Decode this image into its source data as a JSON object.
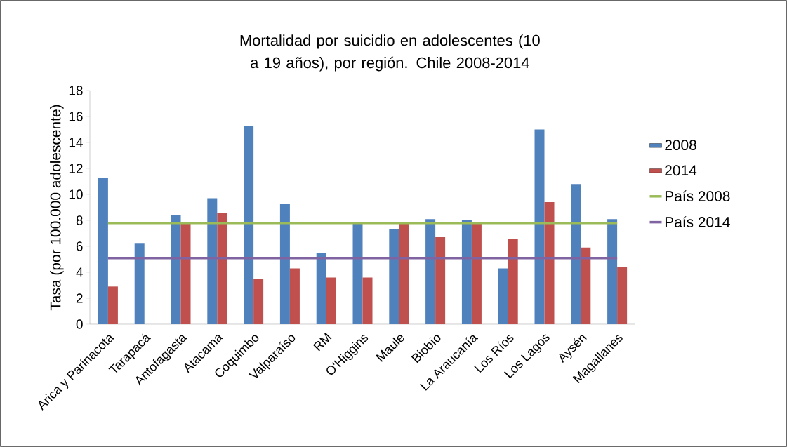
{
  "chart_data": {
    "type": "bar",
    "title": "Mortalidad por suicidio en adolescentes (10 a 19 años), por región. Chile 2008-2014",
    "ylabel": "Tasa (por 100.000 adolescente)",
    "categories": [
      "Arica y Parinacota",
      "Tarapacá",
      "Antofagasta",
      "Atacama",
      "Coquimbo",
      "Valparaíso",
      "RM",
      "O'Higgins",
      "Maule",
      "Biobío",
      "La Araucanía",
      "Los Ríos",
      "Los Lagos",
      "Aysén",
      "Magallanes"
    ],
    "series": [
      {
        "name": "2008",
        "color": "#4f81bd",
        "values": [
          11.3,
          6.2,
          8.4,
          9.7,
          15.3,
          9.3,
          5.5,
          7.8,
          7.3,
          8.1,
          8.0,
          4.3,
          15.0,
          10.8,
          8.1
        ]
      },
      {
        "name": "2014",
        "color": "#c0504d",
        "values": [
          2.9,
          null,
          7.8,
          8.6,
          3.5,
          4.3,
          3.6,
          3.6,
          7.8,
          6.7,
          7.8,
          6.6,
          9.4,
          5.9,
          4.4
        ]
      },
      {
        "name": "País 2008",
        "type": "line",
        "color": "#9bbb59",
        "values": [
          7.8,
          7.8,
          7.8,
          7.8,
          7.8,
          7.8,
          7.8,
          7.8,
          7.8,
          7.8,
          7.8,
          7.8,
          7.8,
          7.8,
          7.8
        ]
      },
      {
        "name": "País 2014",
        "type": "line",
        "color": "#8064a2",
        "values": [
          5.1,
          5.1,
          5.1,
          5.1,
          5.1,
          5.1,
          5.1,
          5.1,
          5.1,
          5.1,
          5.1,
          5.1,
          5.1,
          5.1,
          5.1
        ]
      }
    ],
    "ylim": [
      0,
      18
    ],
    "yticks": [
      0,
      2,
      4,
      6,
      8,
      10,
      12,
      14,
      16,
      18
    ],
    "legend": "right",
    "marker": "none"
  }
}
